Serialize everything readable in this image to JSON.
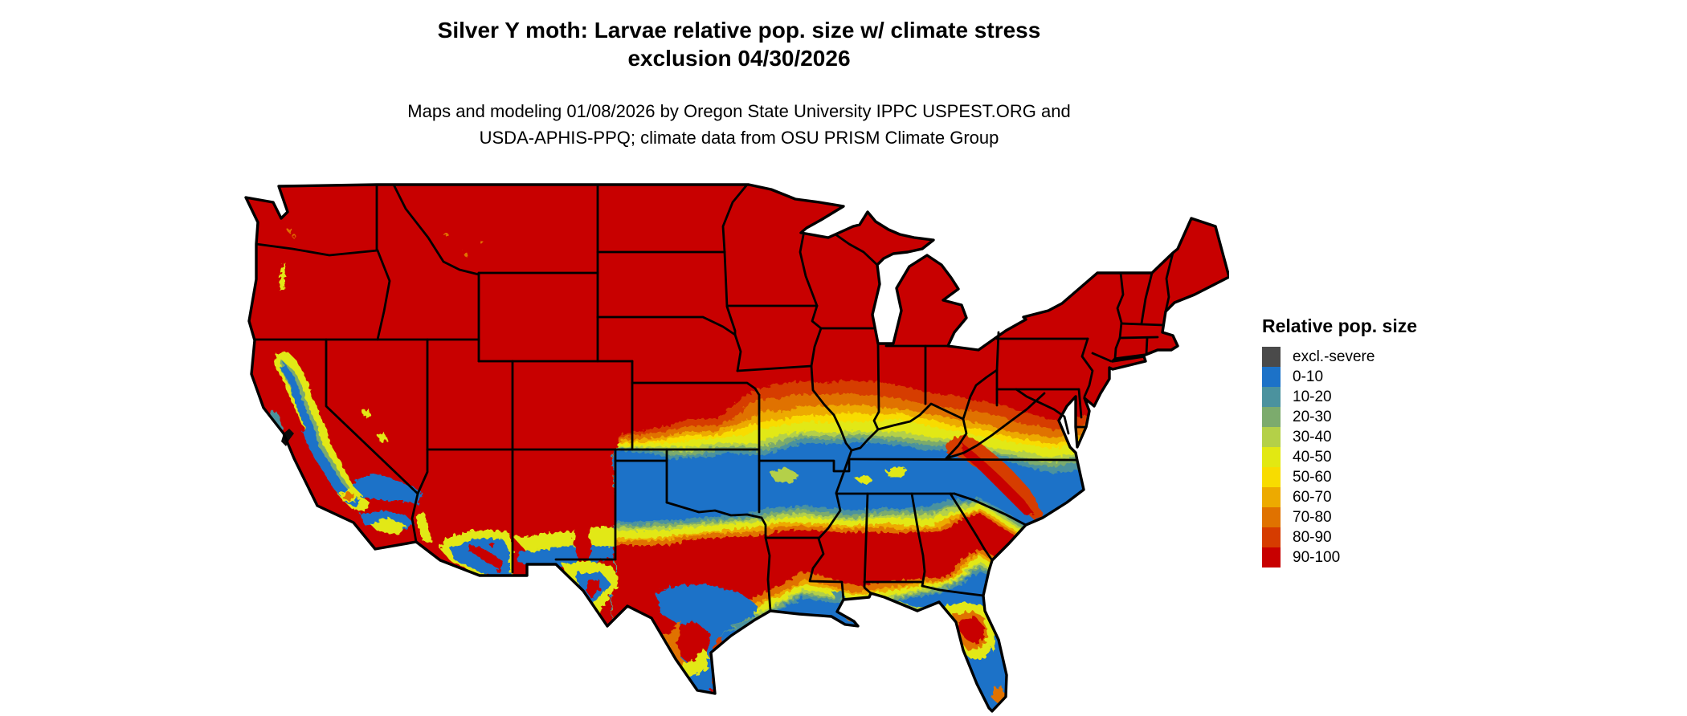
{
  "title": {
    "line1": "Silver Y moth: Larvae relative pop. size w/ climate stress",
    "line2": "exclusion 04/30/2026"
  },
  "subtitle": {
    "line1": "Maps and modeling 01/08/2026 by Oregon State University IPPC USPEST.ORG and",
    "line2": "USDA-APHIS-PPQ; climate data from OSU PRISM Climate Group"
  },
  "legend": {
    "title": "Relative pop. size",
    "items": [
      {
        "label": "excl.-severe",
        "color": "#4a4a4a"
      },
      {
        "label": "0-10",
        "color": "#1c72c8"
      },
      {
        "label": "10-20",
        "color": "#4b929e"
      },
      {
        "label": "20-30",
        "color": "#7cab6d"
      },
      {
        "label": "30-40",
        "color": "#b4d048"
      },
      {
        "label": "40-50",
        "color": "#e2e812"
      },
      {
        "label": "50-60",
        "color": "#f8dc00"
      },
      {
        "label": "60-70",
        "color": "#edaa00"
      },
      {
        "label": "70-80",
        "color": "#e07200"
      },
      {
        "label": "80-90",
        "color": "#d63c00"
      },
      {
        "label": "90-100",
        "color": "#c80000"
      }
    ]
  },
  "map": {
    "region": "Continental United States",
    "land_base_color": "#c80000",
    "border_color": "#000000",
    "background_color": "#ffffff"
  }
}
